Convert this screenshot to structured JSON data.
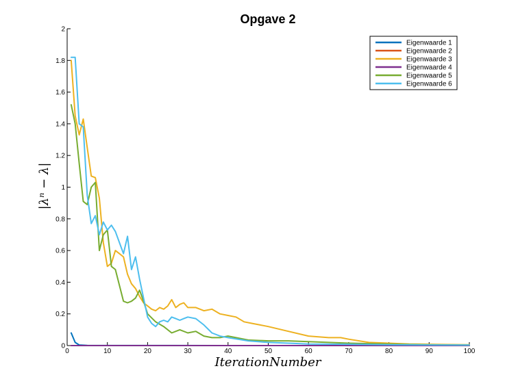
{
  "chart_data": {
    "type": "line",
    "title": "Opgave 2",
    "xlabel": "IterationNumber",
    "ylabel": "|λⁿ − λ|",
    "xlim": [
      0,
      100
    ],
    "ylim": [
      0,
      2
    ],
    "xticks": [
      0,
      10,
      20,
      30,
      40,
      50,
      60,
      70,
      80,
      90,
      100
    ],
    "yticks": [
      0,
      0.2,
      0.4,
      0.6,
      0.8,
      1,
      1.2,
      1.4,
      1.6,
      1.8,
      2
    ],
    "xtick_labels": [
      "0",
      "10",
      "20",
      "30",
      "40",
      "50",
      "60",
      "70",
      "80",
      "90",
      "100"
    ],
    "ytick_labels": [
      "0",
      "0.2",
      "0.4",
      "0.6",
      "0.8",
      "1",
      "1.2",
      "1.4",
      "1.6",
      "1.8",
      "2"
    ],
    "grid": false,
    "legend_position": "top-right",
    "series": [
      {
        "name": "Eigenwaarde 1",
        "color": "#0072BD",
        "x": [
          1,
          2,
          3,
          5,
          10,
          20,
          40,
          70,
          100
        ],
        "y": [
          0.08,
          0.02,
          0.004,
          0.001,
          0.0005,
          0.0003,
          0.0002,
          0.0001,
          0.0001
        ]
      },
      {
        "name": "Eigenwaarde 2",
        "color": "#D95319",
        "x": [
          1,
          100
        ],
        "y": [
          0,
          0
        ]
      },
      {
        "name": "Eigenwaarde 3",
        "color": "#EDB120",
        "x": [
          1,
          2,
          3,
          4,
          5,
          6,
          7,
          8,
          9,
          10,
          11,
          12,
          13,
          14,
          15,
          16,
          17,
          18,
          19,
          20,
          21,
          22,
          23,
          24,
          25,
          26,
          27,
          28,
          29,
          30,
          32,
          34,
          36,
          38,
          40,
          42,
          44,
          46,
          48,
          50,
          55,
          60,
          65,
          68,
          70,
          75,
          80,
          85,
          90,
          100
        ],
        "y": [
          1.8,
          1.45,
          1.33,
          1.43,
          1.25,
          1.07,
          1.06,
          0.93,
          0.65,
          0.5,
          0.52,
          0.6,
          0.58,
          0.56,
          0.45,
          0.39,
          0.36,
          0.31,
          0.27,
          0.25,
          0.23,
          0.22,
          0.24,
          0.23,
          0.25,
          0.29,
          0.24,
          0.26,
          0.27,
          0.24,
          0.24,
          0.22,
          0.23,
          0.2,
          0.19,
          0.18,
          0.15,
          0.14,
          0.13,
          0.12,
          0.09,
          0.06,
          0.05,
          0.05,
          0.04,
          0.02,
          0.015,
          0.01,
          0.008,
          0.005
        ]
      },
      {
        "name": "Eigenwaarde 4",
        "color": "#7E2F8E",
        "x": [
          1,
          100
        ],
        "y": [
          0,
          0
        ]
      },
      {
        "name": "Eigenwaarde 5",
        "color": "#77AC30",
        "x": [
          1,
          2,
          3,
          4,
          5,
          6,
          7,
          8,
          9,
          10,
          11,
          12,
          13,
          14,
          15,
          16,
          17,
          18,
          19,
          20,
          22,
          24,
          26,
          28,
          30,
          32,
          34,
          36,
          38,
          40,
          45,
          50,
          55,
          60,
          65,
          70,
          80,
          90,
          100
        ],
        "y": [
          1.52,
          1.4,
          1.15,
          0.91,
          0.89,
          1.0,
          1.03,
          0.6,
          0.7,
          0.73,
          0.5,
          0.48,
          0.38,
          0.28,
          0.27,
          0.28,
          0.3,
          0.35,
          0.28,
          0.2,
          0.15,
          0.12,
          0.08,
          0.1,
          0.08,
          0.09,
          0.06,
          0.05,
          0.05,
          0.06,
          0.035,
          0.03,
          0.03,
          0.025,
          0.02,
          0.015,
          0.01,
          0.005,
          0.003
        ]
      },
      {
        "name": "Eigenwaarde 6",
        "color": "#4DBEEE",
        "x": [
          1,
          2,
          3,
          4,
          5,
          6,
          7,
          8,
          9,
          10,
          11,
          12,
          13,
          14,
          15,
          16,
          17,
          18,
          19,
          20,
          21,
          22,
          23,
          24,
          25,
          26,
          27,
          28,
          29,
          30,
          32,
          34,
          36,
          38,
          40,
          45,
          50,
          55,
          60,
          70,
          80,
          100
        ],
        "y": [
          1.82,
          1.82,
          1.4,
          1.38,
          0.95,
          0.77,
          0.82,
          0.7,
          0.78,
          0.73,
          0.76,
          0.72,
          0.65,
          0.58,
          0.69,
          0.48,
          0.56,
          0.42,
          0.3,
          0.18,
          0.14,
          0.12,
          0.15,
          0.16,
          0.15,
          0.18,
          0.17,
          0.16,
          0.17,
          0.18,
          0.17,
          0.13,
          0.08,
          0.06,
          0.05,
          0.03,
          0.02,
          0.015,
          0.01,
          0.008,
          0.005,
          0.003
        ]
      }
    ]
  }
}
